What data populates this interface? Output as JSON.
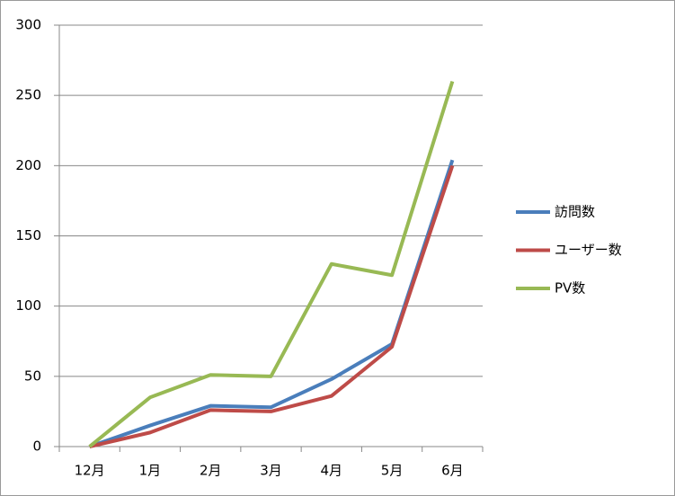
{
  "chart_data": {
    "type": "line",
    "categories": [
      "12月",
      "1月",
      "2月",
      "3月",
      "4月",
      "5月",
      "6月"
    ],
    "series": [
      {
        "name": "訪問数",
        "color": "#4a7ebb",
        "values": [
          0,
          15,
          29,
          28,
          48,
          73,
          204
        ]
      },
      {
        "name": "ユーザー数",
        "color": "#be4b48",
        "values": [
          0,
          10,
          26,
          25,
          36,
          71,
          200
        ]
      },
      {
        "name": "PV数",
        "color": "#98b954",
        "values": [
          0,
          35,
          51,
          50,
          130,
          122,
          260
        ]
      }
    ],
    "ylim": [
      0,
      300
    ],
    "yticks": [
      0,
      50,
      100,
      150,
      200,
      250,
      300
    ],
    "grid": true,
    "legend": "right"
  }
}
